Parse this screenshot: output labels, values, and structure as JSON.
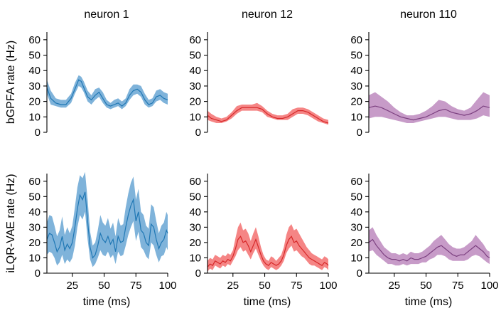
{
  "chart_data": [
    {
      "type": "area",
      "title": "neuron 1",
      "xlabel": "",
      "ylabel": "bGPFA rate (Hz)",
      "xlim": [
        5,
        100
      ],
      "ylim": [
        0,
        65
      ],
      "xticks": [],
      "yticks": [
        0,
        10,
        20,
        30,
        40,
        50,
        60
      ],
      "color": "#1f77b4",
      "band_color": "#7fb3da",
      "series": [
        {
          "x": [
            5,
            8,
            12,
            16,
            20,
            24,
            27,
            30,
            32,
            34,
            37,
            40,
            43,
            46,
            49,
            52,
            55,
            58,
            61,
            64,
            67,
            70,
            73,
            76,
            79,
            82,
            85,
            88,
            91,
            94,
            97,
            100
          ],
          "mean": [
            29,
            22,
            19,
            18,
            18,
            22,
            28,
            34,
            33,
            29,
            23,
            21,
            24,
            26,
            22,
            18,
            17,
            18,
            19,
            17,
            19,
            24,
            27,
            28,
            26,
            21,
            18,
            19,
            23,
            24,
            22,
            21
          ],
          "lower": [
            25,
            18,
            17,
            16,
            16,
            19,
            25,
            30,
            29,
            26,
            20,
            18,
            21,
            23,
            19,
            16,
            15,
            16,
            17,
            15,
            17,
            21,
            24,
            25,
            23,
            18,
            16,
            17,
            20,
            21,
            19,
            18
          ],
          "upper": [
            34,
            27,
            22,
            21,
            21,
            25,
            32,
            37,
            36,
            33,
            27,
            24,
            28,
            29,
            26,
            21,
            19,
            21,
            22,
            20,
            22,
            28,
            31,
            31,
            30,
            25,
            21,
            22,
            27,
            28,
            26,
            25
          ]
        }
      ]
    },
    {
      "type": "area",
      "title": "neuron 12",
      "xlabel": "",
      "ylabel": "",
      "xlim": [
        5,
        100
      ],
      "ylim": [
        0,
        65
      ],
      "xticks": [],
      "yticks": [
        0,
        10,
        20,
        30,
        40,
        50,
        60
      ],
      "color": "#d62728",
      "band_color": "#f58585",
      "series": [
        {
          "x": [
            5,
            8,
            12,
            16,
            20,
            24,
            28,
            32,
            36,
            40,
            44,
            48,
            52,
            56,
            60,
            64,
            68,
            72,
            76,
            80,
            84,
            88,
            92,
            96,
            100
          ],
          "mean": [
            11,
            9,
            8,
            7,
            8,
            11,
            14,
            16,
            16,
            16,
            16,
            15,
            12,
            10,
            9,
            9,
            10,
            12,
            14,
            14,
            13,
            11,
            9,
            7,
            6
          ],
          "lower": [
            8,
            7,
            6,
            6,
            7,
            9,
            12,
            14,
            14,
            14,
            14,
            13,
            10,
            9,
            8,
            8,
            8,
            10,
            12,
            12,
            11,
            9,
            7,
            6,
            5
          ],
          "upper": [
            14,
            12,
            10,
            9,
            10,
            13,
            17,
            18,
            18,
            18,
            19,
            17,
            14,
            12,
            11,
            11,
            12,
            15,
            16,
            16,
            15,
            13,
            11,
            9,
            8
          ]
        }
      ]
    },
    {
      "type": "area",
      "title": "neuron 110",
      "xlabel": "",
      "ylabel": "",
      "xlim": [
        5,
        100
      ],
      "ylim": [
        0,
        65
      ],
      "xticks": [],
      "yticks": [
        0,
        10,
        20,
        30,
        40,
        50,
        60
      ],
      "color": "#7b3f7f",
      "band_color": "#c79bc8",
      "series": [
        {
          "x": [
            5,
            10,
            15,
            20,
            25,
            30,
            35,
            40,
            45,
            50,
            55,
            60,
            65,
            70,
            75,
            80,
            85,
            90,
            95,
            100
          ],
          "mean": [
            16,
            17,
            16,
            14,
            12,
            10,
            9,
            8,
            9,
            10,
            12,
            14,
            15,
            13,
            12,
            11,
            12,
            14,
            17,
            16
          ],
          "lower": [
            9,
            10,
            10,
            9,
            8,
            7,
            6,
            6,
            7,
            8,
            9,
            10,
            10,
            9,
            8,
            8,
            8,
            9,
            11,
            10
          ],
          "upper": [
            24,
            26,
            23,
            20,
            16,
            13,
            11,
            11,
            12,
            14,
            17,
            21,
            20,
            17,
            15,
            14,
            16,
            21,
            26,
            24
          ]
        }
      ]
    },
    {
      "type": "area",
      "title": "",
      "xlabel": "time (ms)",
      "ylabel": "iLQR-VAE rate (Hz)",
      "xlim": [
        5,
        100
      ],
      "ylim": [
        0,
        65
      ],
      "xticks": [
        25,
        50,
        75,
        100
      ],
      "yticks": [
        0,
        10,
        20,
        30,
        40,
        50,
        60
      ],
      "color": "#1f77b4",
      "band_color": "#7fb3da",
      "series": [
        {
          "x": [
            5,
            7,
            9,
            11,
            13,
            15,
            17,
            19,
            21,
            23,
            25,
            27,
            29,
            31,
            33,
            35,
            37,
            39,
            41,
            43,
            45,
            47,
            49,
            51,
            53,
            55,
            57,
            59,
            61,
            63,
            65,
            67,
            69,
            71,
            73,
            75,
            77,
            79,
            81,
            83,
            85,
            87,
            89,
            91,
            93,
            95,
            97,
            99,
            100
          ],
          "mean": [
            22,
            26,
            25,
            20,
            14,
            17,
            24,
            15,
            19,
            16,
            20,
            30,
            42,
            51,
            48,
            53,
            34,
            17,
            10,
            12,
            18,
            26,
            22,
            20,
            24,
            19,
            22,
            14,
            24,
            20,
            21,
            30,
            38,
            44,
            48,
            34,
            40,
            28,
            26,
            20,
            18,
            32,
            30,
            22,
            16,
            20,
            22,
            28,
            26
          ],
          "lower": [
            12,
            14,
            13,
            10,
            5,
            7,
            12,
            6,
            9,
            7,
            10,
            18,
            30,
            38,
            35,
            40,
            22,
            9,
            4,
            6,
            10,
            15,
            12,
            11,
            14,
            10,
            12,
            6,
            14,
            11,
            12,
            18,
            25,
            30,
            34,
            21,
            27,
            17,
            15,
            11,
            9,
            20,
            18,
            12,
            7,
            11,
            12,
            17,
            15
          ],
          "upper": [
            33,
            38,
            37,
            31,
            24,
            28,
            37,
            25,
            30,
            26,
            31,
            43,
            56,
            64,
            62,
            66,
            48,
            27,
            18,
            20,
            28,
            38,
            33,
            31,
            36,
            29,
            33,
            24,
            36,
            31,
            32,
            43,
            52,
            59,
            63,
            48,
            55,
            40,
            38,
            31,
            29,
            45,
            43,
            34,
            26,
            31,
            33,
            40,
            38
          ]
        }
      ]
    },
    {
      "type": "area",
      "title": "",
      "xlabel": "time (ms)",
      "ylabel": "",
      "xlim": [
        5,
        100
      ],
      "ylim": [
        0,
        65
      ],
      "xticks": [
        25,
        50,
        75,
        100
      ],
      "yticks": [
        0,
        10,
        20,
        30,
        40,
        50,
        60
      ],
      "color": "#d62728",
      "band_color": "#f58585",
      "series": [
        {
          "x": [
            5,
            7,
            9,
            11,
            13,
            15,
            17,
            19,
            21,
            23,
            25,
            27,
            29,
            31,
            33,
            35,
            37,
            39,
            41,
            43,
            45,
            47,
            49,
            51,
            53,
            55,
            57,
            59,
            61,
            63,
            65,
            67,
            69,
            71,
            73,
            75,
            77,
            79,
            81,
            83,
            85,
            87,
            89,
            91,
            93,
            95,
            97,
            99,
            100
          ],
          "mean": [
            4,
            6,
            5,
            8,
            7,
            6,
            8,
            7,
            9,
            8,
            11,
            16,
            22,
            24,
            20,
            21,
            18,
            14,
            18,
            22,
            17,
            12,
            8,
            6,
            5,
            7,
            6,
            5,
            6,
            8,
            12,
            18,
            22,
            24,
            20,
            21,
            18,
            16,
            14,
            12,
            10,
            9,
            8,
            7,
            6,
            5,
            7,
            6,
            5
          ],
          "lower": [
            1,
            3,
            2,
            5,
            4,
            3,
            5,
            4,
            6,
            5,
            8,
            11,
            15,
            17,
            14,
            15,
            12,
            9,
            13,
            16,
            12,
            8,
            5,
            3,
            2,
            4,
            3,
            2,
            3,
            5,
            8,
            13,
            16,
            18,
            14,
            15,
            13,
            11,
            10,
            8,
            6,
            5,
            5,
            4,
            3,
            2,
            4,
            3,
            2
          ],
          "upper": [
            8,
            10,
            9,
            12,
            11,
            10,
            12,
            11,
            13,
            12,
            15,
            23,
            30,
            33,
            28,
            29,
            26,
            21,
            26,
            30,
            24,
            17,
            12,
            9,
            8,
            11,
            10,
            8,
            10,
            12,
            17,
            25,
            30,
            32,
            28,
            29,
            26,
            23,
            20,
            17,
            15,
            13,
            12,
            11,
            10,
            9,
            11,
            10,
            9
          ]
        }
      ]
    },
    {
      "type": "area",
      "title": "",
      "xlabel": "time (ms)",
      "ylabel": "",
      "xlim": [
        5,
        100
      ],
      "ylim": [
        0,
        65
      ],
      "xticks": [
        25,
        50,
        75,
        100
      ],
      "yticks": [
        0,
        10,
        20,
        30,
        40,
        50,
        60
      ],
      "color": "#7b3f7f",
      "band_color": "#c79bc8",
      "series": [
        {
          "x": [
            5,
            8,
            11,
            14,
            17,
            20,
            23,
            26,
            29,
            32,
            35,
            38,
            41,
            44,
            47,
            50,
            53,
            56,
            59,
            62,
            65,
            68,
            71,
            74,
            77,
            80,
            83,
            86,
            89,
            92,
            95,
            98,
            100
          ],
          "mean": [
            20,
            22,
            18,
            15,
            12,
            10,
            9,
            9,
            8,
            9,
            8,
            10,
            9,
            9,
            10,
            11,
            13,
            15,
            17,
            18,
            16,
            14,
            12,
            11,
            12,
            12,
            14,
            16,
            18,
            16,
            14,
            11,
            10
          ],
          "lower": [
            14,
            15,
            12,
            10,
            8,
            6,
            6,
            5,
            5,
            6,
            5,
            6,
            6,
            6,
            7,
            7,
            9,
            10,
            12,
            12,
            11,
            9,
            8,
            8,
            8,
            8,
            9,
            11,
            12,
            11,
            9,
            7,
            6
          ],
          "upper": [
            28,
            30,
            25,
            21,
            17,
            15,
            13,
            13,
            12,
            13,
            12,
            14,
            13,
            13,
            14,
            16,
            18,
            21,
            23,
            25,
            22,
            19,
            17,
            16,
            16,
            17,
            19,
            21,
            25,
            22,
            19,
            15,
            14
          ]
        }
      ]
    }
  ]
}
